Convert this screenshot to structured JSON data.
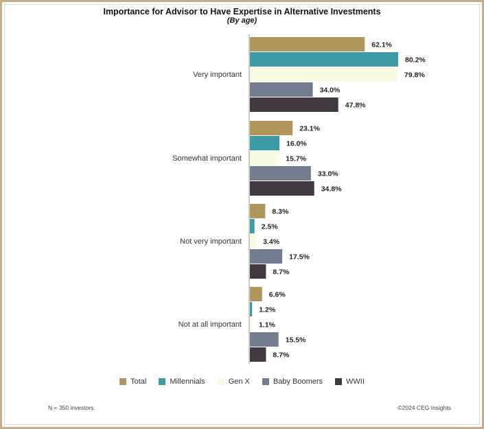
{
  "colors": {
    "frame": "#c4ad8a",
    "series": [
      "#b1965c",
      "#3d9aa6",
      "#f7fbe2",
      "#737d8f",
      "#413841"
    ]
  },
  "chart_data": {
    "type": "bar",
    "orientation": "horizontal",
    "title": "Importance for Advisor to Have Expertise in Alternative Investments",
    "subtitle": "(By age)",
    "categories": [
      "Very important",
      "Somewhat important",
      "Not very important",
      "Not at all important"
    ],
    "series": [
      {
        "name": "Total",
        "color": "#b1965c",
        "values": [
          62.1,
          23.1,
          8.3,
          6.6
        ]
      },
      {
        "name": "Millennials",
        "color": "#3d9aa6",
        "values": [
          80.2,
          16.0,
          2.5,
          1.2
        ]
      },
      {
        "name": "Gen X",
        "color": "#f7fbe2",
        "values": [
          79.8,
          15.7,
          3.4,
          1.1
        ]
      },
      {
        "name": "Baby Boomers",
        "color": "#737d8f",
        "values": [
          34.0,
          33.0,
          17.5,
          15.5
        ]
      },
      {
        "name": "WWII",
        "color": "#413841",
        "values": [
          47.8,
          34.8,
          8.7,
          8.7
        ]
      }
    ],
    "value_suffix": "%",
    "xlim": [
      0,
      80.2
    ],
    "grid": false,
    "legend_position": "bottom"
  },
  "footer": {
    "note": "N = 350 investors.",
    "source": "©2024 CEG Insights"
  }
}
